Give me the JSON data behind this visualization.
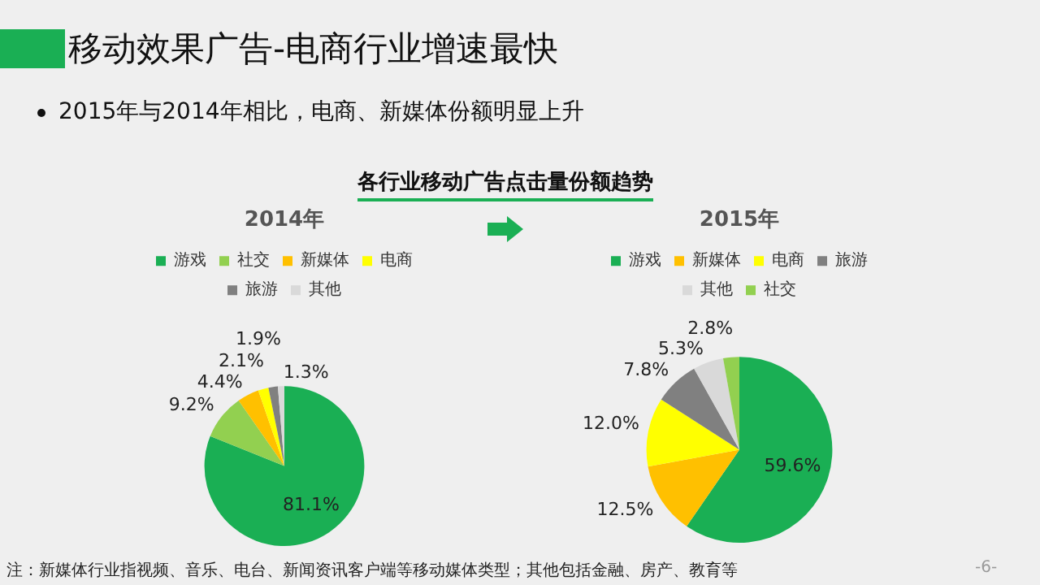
{
  "chart_data": [
    {
      "type": "pie",
      "title": "2014年",
      "categories": [
        "游戏",
        "社交",
        "新媒体",
        "电商",
        "旅游",
        "其他"
      ],
      "values": [
        81.1,
        9.2,
        4.4,
        2.1,
        1.9,
        1.3
      ],
      "value_labels": [
        "81.1%",
        "9.2%",
        "4.4%",
        "2.1%",
        "1.9%",
        "1.3%"
      ],
      "colors": [
        "#1aaf54",
        "#92d050",
        "#ffc000",
        "#ffff00",
        "#808080",
        "#d9d9d9"
      ],
      "legend": "top",
      "annotations": [
        "移动效果广告-电商行业增速最快",
        "2015年与2014年相比，电商、新媒体份额明显上升",
        "各行业移动广告点击量份额趋势"
      ]
    },
    {
      "type": "pie",
      "title": "2015年",
      "categories": [
        "游戏",
        "新媒体",
        "电商",
        "旅游",
        "其他",
        "社交"
      ],
      "values": [
        59.6,
        12.5,
        12.0,
        7.8,
        5.3,
        2.8
      ],
      "value_labels": [
        "59.6%",
        "12.5%",
        "12.0%",
        "7.8%",
        "5.3%",
        "2.8%"
      ],
      "colors": [
        "#1aaf54",
        "#ffc000",
        "#ffff00",
        "#808080",
        "#d9d9d9",
        "#92d050"
      ],
      "legend": "top",
      "annotations": [
        "注：新媒体行业指视频、音乐、电台、新闻资讯客户端等移动媒体类型；其他包括金融、房产、教育等",
        "-6-"
      ]
    }
  ]
}
